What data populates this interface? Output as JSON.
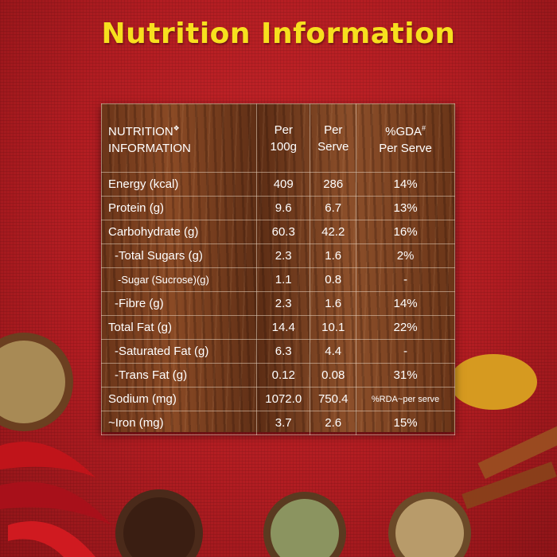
{
  "title": "Nutrition Information",
  "table": {
    "header": [
      {
        "lines": [
          "NUTRITION",
          "INFORMATION"
        ],
        "mark": "❖"
      },
      {
        "lines": [
          "Per",
          "100g"
        ]
      },
      {
        "lines": [
          "Per",
          "Serve"
        ]
      },
      {
        "lines": [
          "%GDA",
          "Per Serve"
        ],
        "mark": "#"
      }
    ],
    "rows": [
      [
        "Energy (kcal)",
        "409",
        "286",
        "14%"
      ],
      [
        "Protein (g)",
        "9.6",
        "6.7",
        "13%"
      ],
      [
        "Carbohydrate (g)",
        "60.3",
        "42.2",
        "16%"
      ],
      [
        "-Total Sugars (g)",
        "2.3",
        "1.6",
        "2%"
      ],
      [
        "-Sugar (Sucrose)(g)",
        "1.1",
        "0.8",
        "-"
      ],
      [
        "-Fibre (g)",
        "2.3",
        "1.6",
        "14%"
      ],
      [
        "Total Fat (g)",
        "14.4",
        "10.1",
        "22%"
      ],
      [
        "-Saturated Fat (g)",
        "6.3",
        "4.4",
        "-"
      ],
      [
        "-Trans Fat (g)",
        "0.12",
        "0.08",
        "31%"
      ],
      [
        "Sodium (mg)",
        "1072.0",
        "750.4",
        "%RDA~per serve"
      ],
      [
        "~Iron (mg)",
        "3.7",
        "2.6",
        "15%"
      ]
    ]
  }
}
